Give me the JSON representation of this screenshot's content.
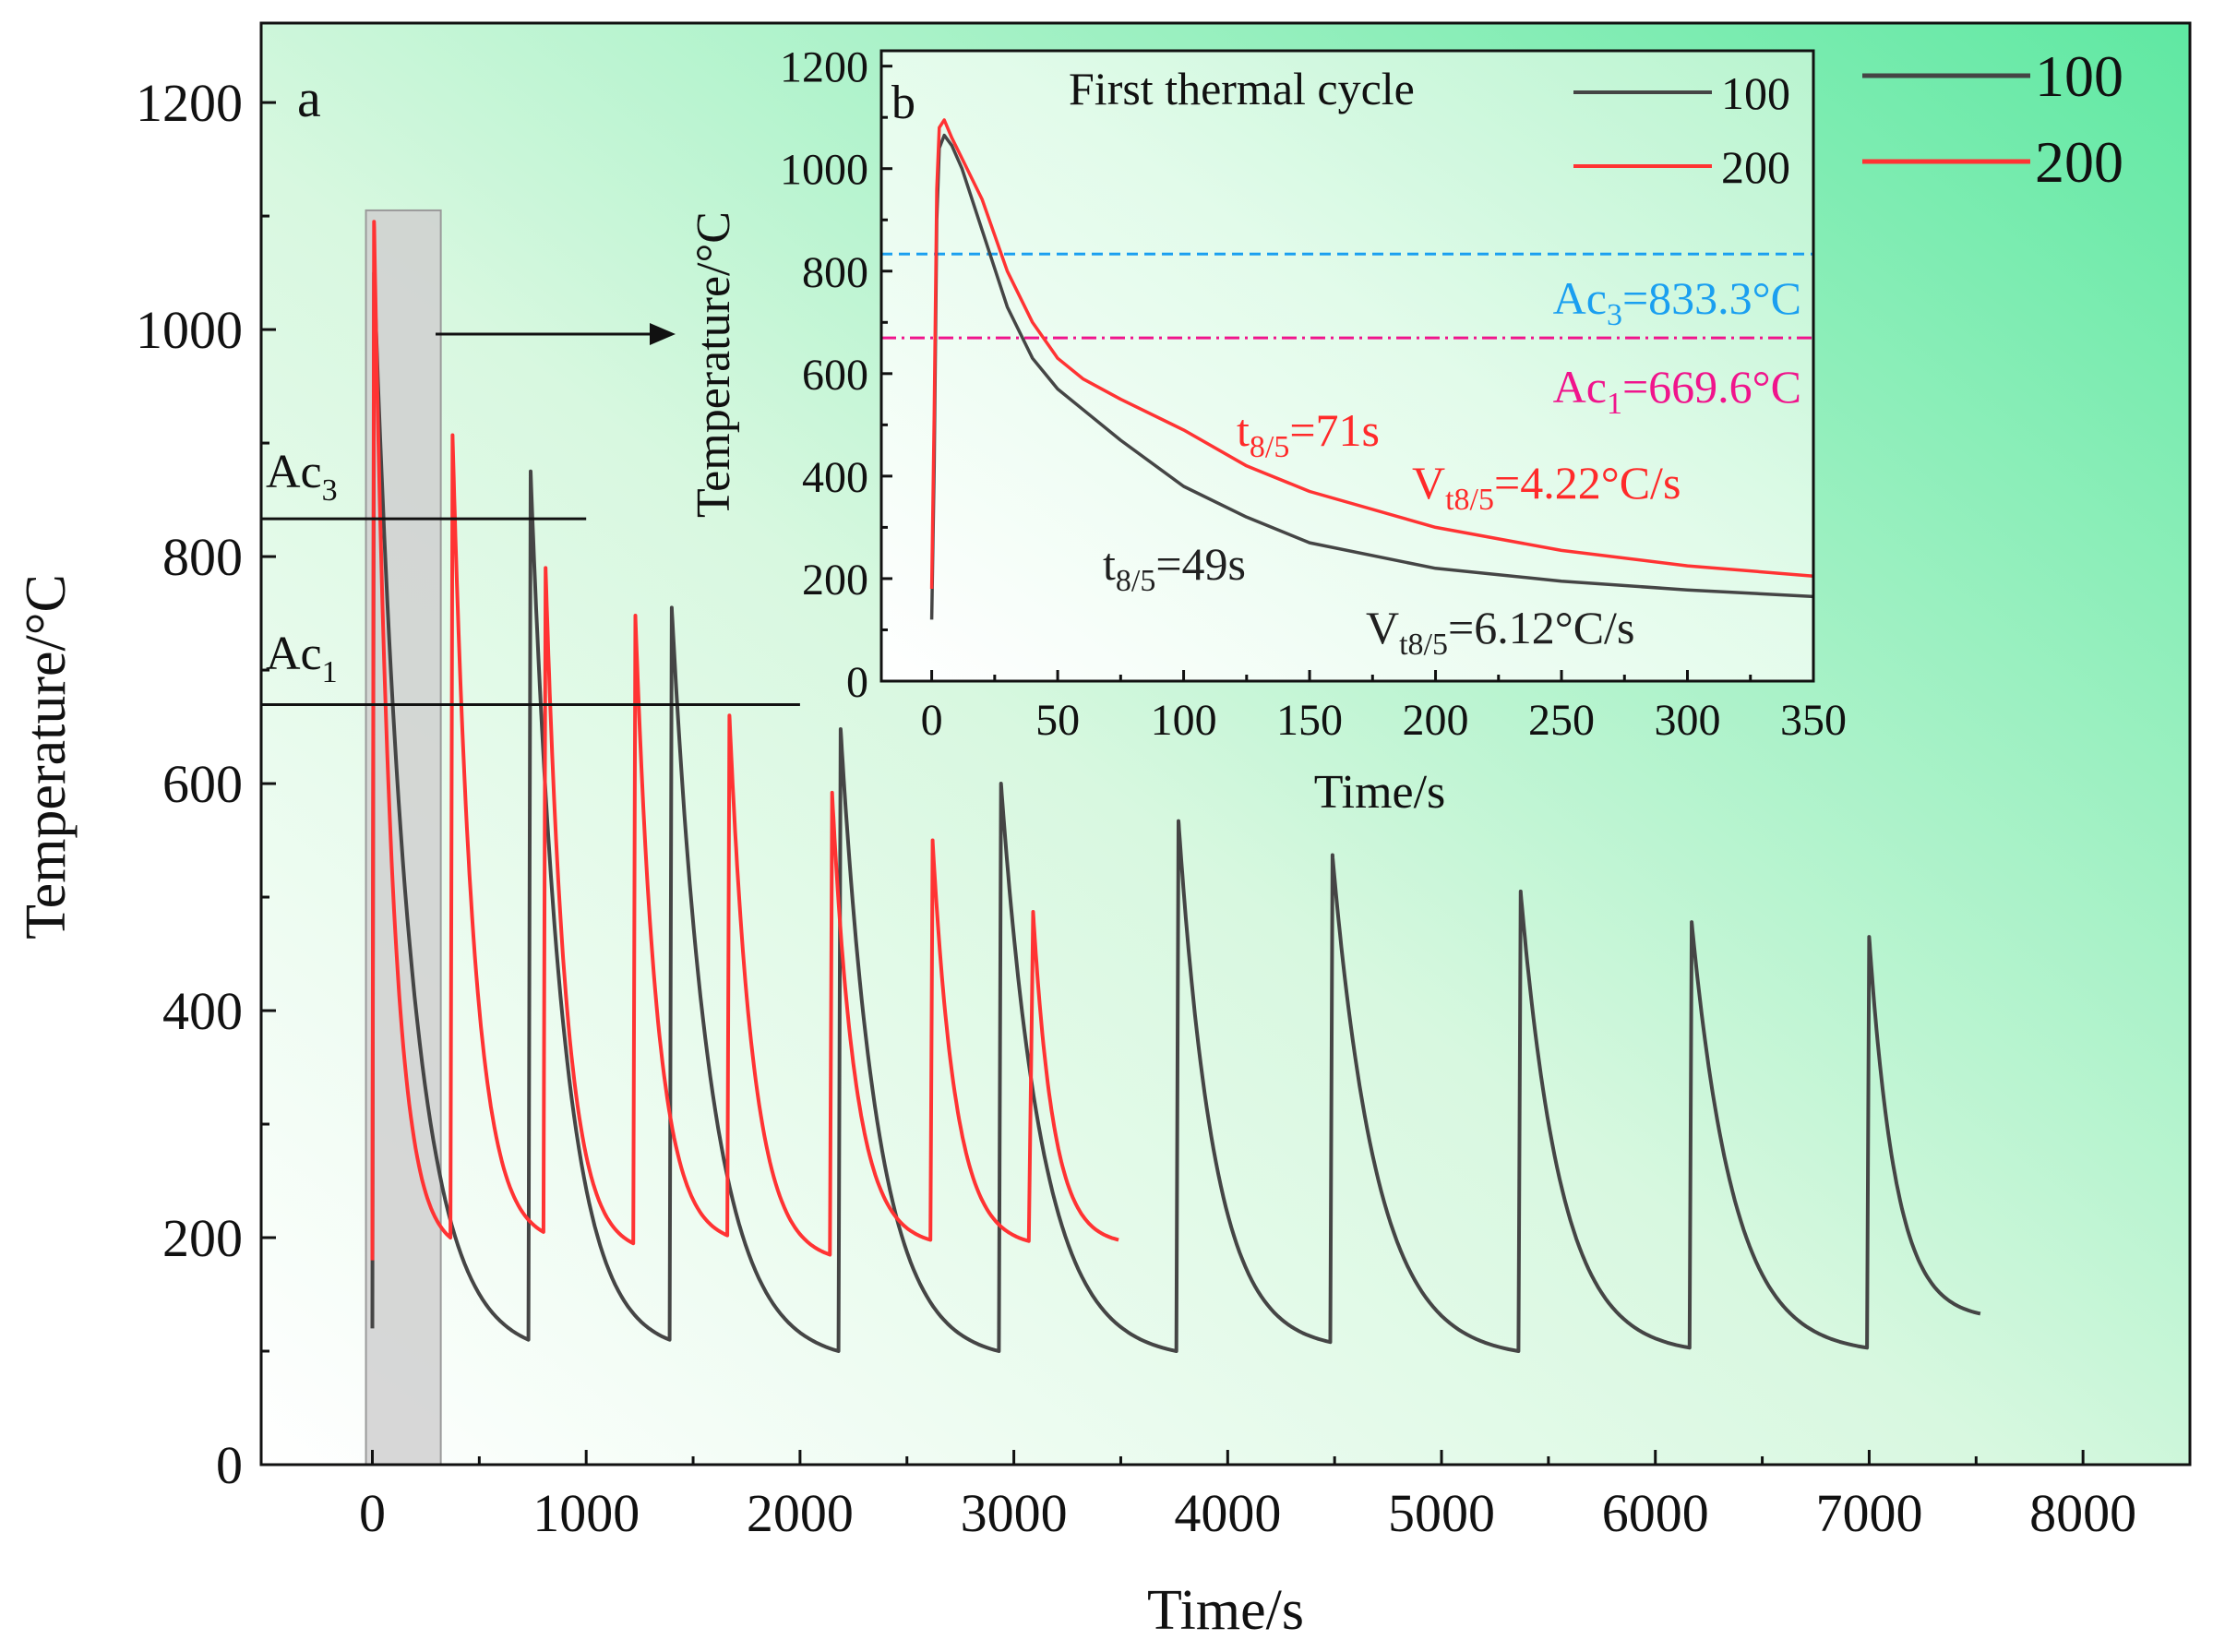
{
  "chart_data": [
    {
      "id": "main",
      "type": "line",
      "panel_label": "a",
      "xlabel": "Time/s",
      "ylabel": "Temperature/°C",
      "xlim": [
        -520,
        8500
      ],
      "ylim": [
        0,
        1270
      ],
      "xticks": [
        0,
        1000,
        2000,
        3000,
        4000,
        5000,
        6000,
        7000,
        8000
      ],
      "xtick_labels": [
        "0",
        "1000",
        "2000",
        "3000",
        "4000",
        "5000",
        "6000",
        "7000",
        "8000"
      ],
      "yticks": [
        0,
        200,
        400,
        600,
        800,
        1000,
        1200
      ],
      "ytick_labels": [
        "0",
        "200",
        "400",
        "600",
        "800",
        "1000",
        "1200"
      ],
      "legend_position": "top-right",
      "series": [
        {
          "name": "100",
          "color": "#454545",
          "cycles": [
            {
              "t_start": 0,
              "t_peak": 8,
              "peak": 1050,
              "t_end": 730,
              "end": 110,
              "start": 120
            },
            {
              "t_start": 730,
              "t_peak": 740,
              "peak": 875,
              "t_end": 1390,
              "end": 110,
              "start": 110
            },
            {
              "t_start": 1390,
              "t_peak": 1400,
              "peak": 755,
              "t_end": 2180,
              "end": 100,
              "start": 110
            },
            {
              "t_start": 2180,
              "t_peak": 2190,
              "peak": 648,
              "t_end": 2930,
              "end": 100,
              "start": 100
            },
            {
              "t_start": 2930,
              "t_peak": 2940,
              "peak": 600,
              "t_end": 3760,
              "end": 100,
              "start": 100
            },
            {
              "t_start": 3760,
              "t_peak": 3770,
              "peak": 567,
              "t_end": 4480,
              "end": 108,
              "start": 100
            },
            {
              "t_start": 4480,
              "t_peak": 4490,
              "peak": 537,
              "t_end": 5360,
              "end": 100,
              "start": 108
            },
            {
              "t_start": 5360,
              "t_peak": 5370,
              "peak": 505,
              "t_end": 6160,
              "end": 103,
              "start": 100
            },
            {
              "t_start": 6160,
              "t_peak": 6170,
              "peak": 478,
              "t_end": 6990,
              "end": 103,
              "start": 103
            },
            {
              "t_start": 6990,
              "t_peak": 7000,
              "peak": 465,
              "t_end": 7520,
              "end": 133,
              "start": 103
            }
          ]
        },
        {
          "name": "200",
          "color": "#ff3333",
          "cycles": [
            {
              "t_start": 0,
              "t_peak": 8,
              "peak": 1095,
              "t_end": 365,
              "end": 200,
              "start": 180
            },
            {
              "t_start": 365,
              "t_peak": 375,
              "peak": 907,
              "t_end": 800,
              "end": 205,
              "start": 200
            },
            {
              "t_start": 800,
              "t_peak": 810,
              "peak": 790,
              "t_end": 1220,
              "end": 195,
              "start": 205
            },
            {
              "t_start": 1220,
              "t_peak": 1230,
              "peak": 748,
              "t_end": 1660,
              "end": 202,
              "start": 195
            },
            {
              "t_start": 1660,
              "t_peak": 1670,
              "peak": 660,
              "t_end": 2140,
              "end": 185,
              "start": 202
            },
            {
              "t_start": 2140,
              "t_peak": 2150,
              "peak": 592,
              "t_end": 2610,
              "end": 198,
              "start": 185
            },
            {
              "t_start": 2610,
              "t_peak": 2620,
              "peak": 550,
              "t_end": 3070,
              "end": 197,
              "start": 198
            },
            {
              "t_start": 3070,
              "t_peak": 3090,
              "peak": 487,
              "t_end": 3490,
              "end": 198,
              "start": 197
            }
          ]
        }
      ],
      "reference_lines": [
        {
          "label": "Ac",
          "label_sub": "3",
          "value": 833.3,
          "x_end": 1000
        },
        {
          "label": "Ac",
          "label_sub": "1",
          "value": 669.6,
          "x_end": 2000
        }
      ],
      "highlight_region": {
        "x_from": -30,
        "x_to": 320,
        "y_from": 0,
        "y_to": 1105
      }
    },
    {
      "id": "inset",
      "type": "line",
      "panel_label": "b",
      "title": "First thermal cycle",
      "xlabel": "Time/s",
      "ylabel": "Temperature/°C",
      "xlim": [
        -20,
        350
      ],
      "ylim": [
        0,
        1230
      ],
      "xticks": [
        0,
        50,
        100,
        150,
        200,
        250,
        300,
        350
      ],
      "xtick_labels": [
        "0",
        "50",
        "100",
        "150",
        "200",
        "250",
        "300",
        "350"
      ],
      "yticks": [
        0,
        200,
        400,
        600,
        800,
        1000,
        1200
      ],
      "ytick_labels": [
        "0",
        "200",
        "400",
        "600",
        "800",
        "1000",
        "1200"
      ],
      "legend_position": "top-right",
      "series": [
        {
          "name": "100",
          "color": "#454545",
          "x": [
            0,
            1,
            2,
            3,
            5,
            8,
            12,
            20,
            30,
            40,
            50,
            60,
            75,
            100,
            125,
            150,
            200,
            250,
            300,
            350
          ],
          "y": [
            120,
            420,
            900,
            1040,
            1065,
            1045,
            1000,
            880,
            730,
            630,
            570,
            530,
            470,
            380,
            320,
            270,
            220,
            195,
            178,
            165
          ]
        },
        {
          "name": "200",
          "color": "#ff3333",
          "x": [
            0,
            1,
            2,
            3,
            5,
            8,
            12,
            20,
            30,
            40,
            50,
            60,
            75,
            100,
            125,
            150,
            200,
            250,
            300,
            350
          ],
          "y": [
            180,
            520,
            960,
            1080,
            1095,
            1060,
            1020,
            940,
            800,
            700,
            630,
            590,
            550,
            490,
            420,
            370,
            300,
            255,
            225,
            205
          ]
        }
      ],
      "reference_lines": [
        {
          "label": "Ac",
          "label_sub": "3",
          "label_rest": "=833.3°C",
          "value": 833.3,
          "color": "#1a9ff0",
          "dash": "dash"
        },
        {
          "label": "Ac",
          "label_sub": "1",
          "label_rest": "=669.6°C",
          "value": 669.6,
          "color": "#f0148c",
          "dash": "dashdot"
        }
      ],
      "annotations": [
        {
          "main": "t",
          "sub": "8/5",
          "rest": "=71s",
          "color": "#ff2a2a"
        },
        {
          "main": "V",
          "sub": "t8/5",
          "rest": "=4.22°C/s",
          "color": "#ff2a2a"
        },
        {
          "main": "t",
          "sub": "8/5",
          "rest": "=49s",
          "color": "#202020"
        },
        {
          "main": "V",
          "sub": "t8/5",
          "rest": "=6.12°C/s",
          "color": "#202020"
        }
      ]
    }
  ]
}
